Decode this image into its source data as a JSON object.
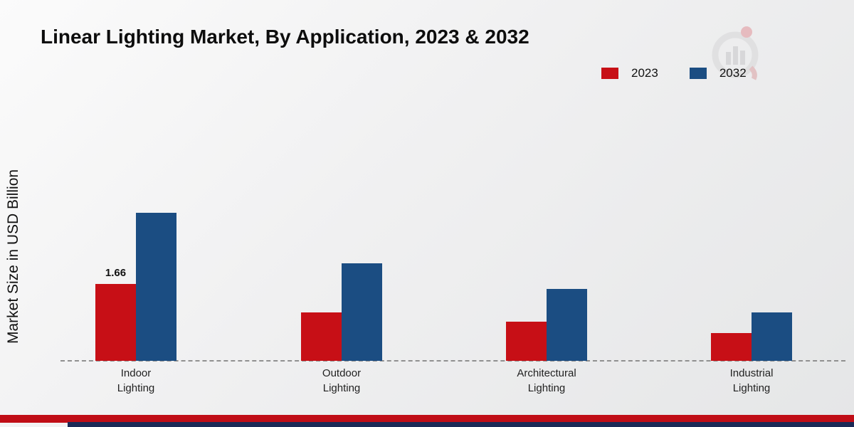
{
  "title": "Linear Lighting Market, By Application, 2023 & 2032",
  "ylabel": "Market Size in USD Billion",
  "legend": [
    {
      "label": "2023",
      "color": "#c70f16"
    },
    {
      "label": "2032",
      "color": "#1b4d82"
    }
  ],
  "chart_data": {
    "type": "bar",
    "title": "Linear Lighting Market, By Application, 2023 & 2032",
    "xlabel": "",
    "ylabel": "Market Size in USD Billion",
    "ylim": [
      0,
      3.5
    ],
    "grid": false,
    "legend_position": "top-right",
    "baseline_style": "dashed",
    "categories": [
      "Indoor Lighting",
      "Outdoor Lighting",
      "Architectural Lighting",
      "Industrial Lighting"
    ],
    "series": [
      {
        "name": "2023",
        "color": "#c70f16",
        "values": [
          1.66,
          1.05,
          0.85,
          0.6
        ]
      },
      {
        "name": "2032",
        "color": "#1b4d82",
        "values": [
          3.2,
          2.1,
          1.55,
          1.05
        ]
      }
    ],
    "annotations": [
      {
        "category": "Indoor Lighting",
        "series": "2023",
        "text": "1.66"
      }
    ]
  },
  "branding": {
    "footer_red": "#c00d16",
    "footer_blue": "#1b2a56",
    "logo": "market-research-future-logo"
  }
}
